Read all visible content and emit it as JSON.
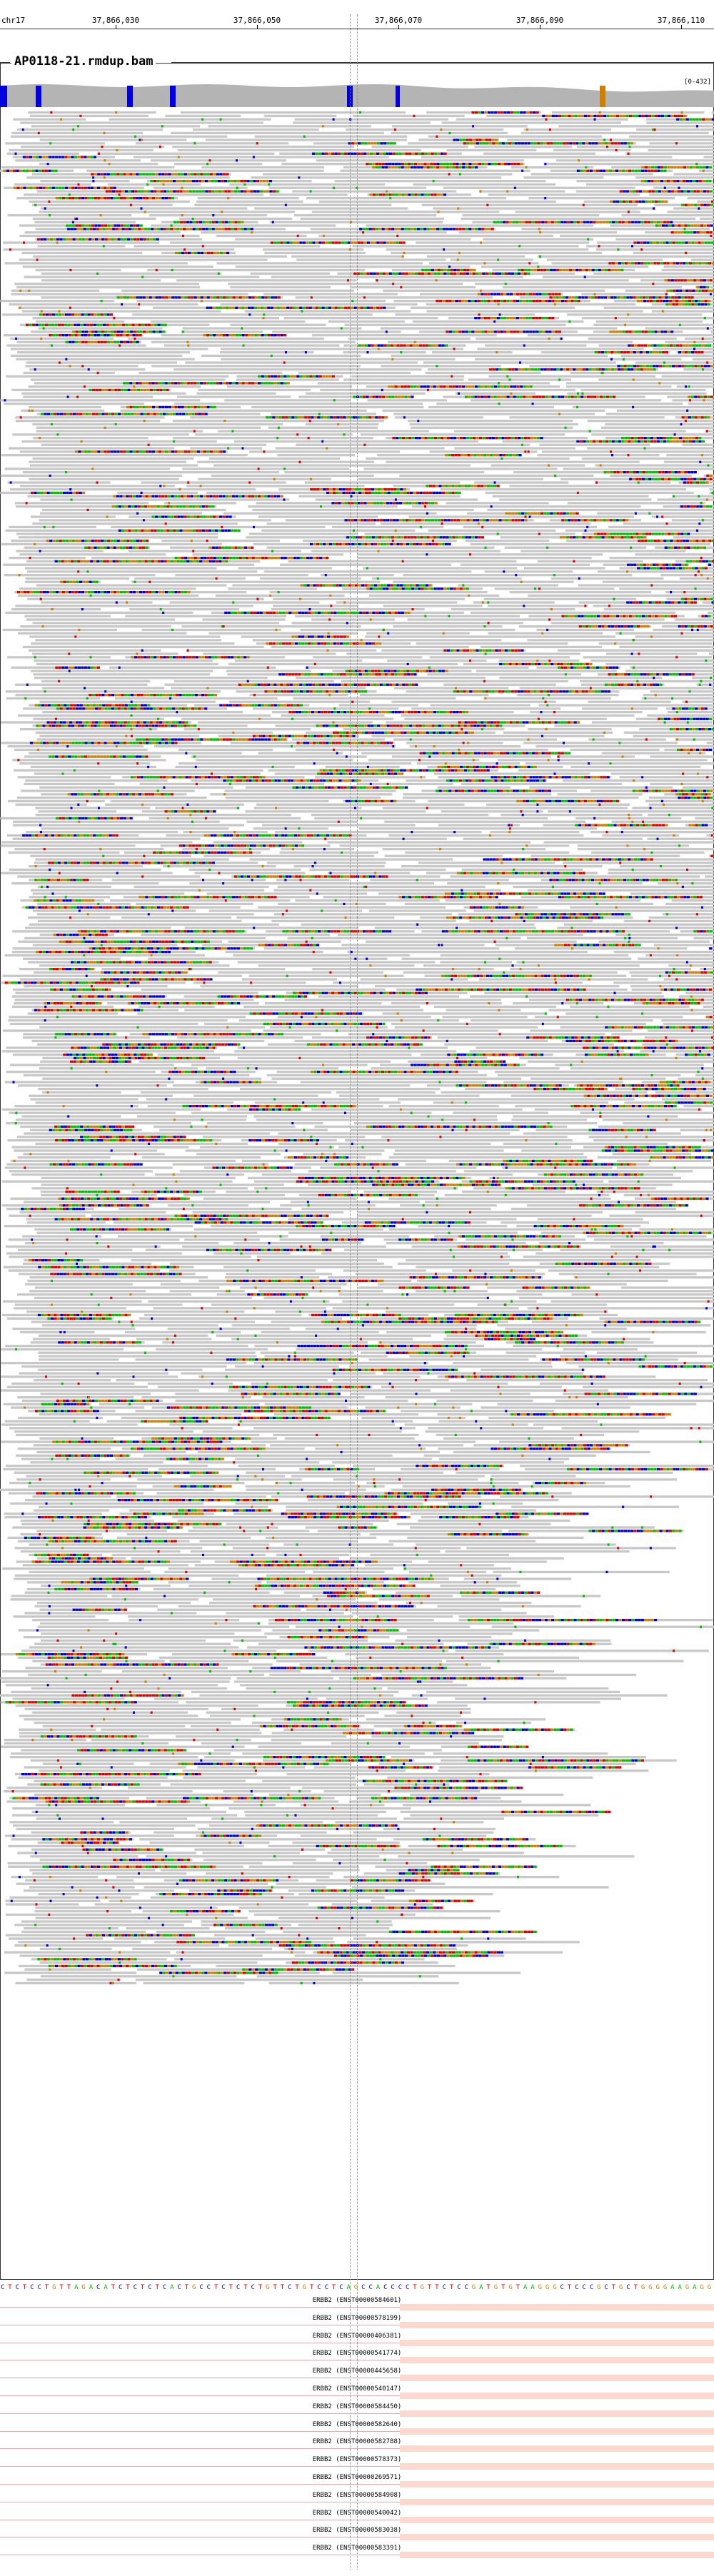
{
  "ruler": {
    "chromosome": "chr17",
    "ticks": [
      "37,866,030",
      "37,866,050",
      "37,866,070",
      "37,866,090",
      "37,866,110"
    ]
  },
  "panel": {
    "title": "AP0118-21.rmdup.bam",
    "coverage_range": "[0-432]"
  },
  "colors": {
    "read": "#c8c8c8",
    "A": "#00c000",
    "C": "#0000e0",
    "G": "#d08000",
    "T": "#e00000",
    "coverage": "#b4b4b4",
    "transcript": "#f4a6a6"
  },
  "sequence": "CTCTCCTGTTAGACATCTCTCTCACTGCCTCTCTCTGTTCTGTCCTCAGCCACCCCTGTTCTCCGATGTGTAAGGGCTCCCGCTGCTGGGGAAGAGG",
  "transcripts": [
    "ERBB2 (ENST00000584601)",
    "ERBB2 (ENST00000578199)",
    "ERBB2 (ENST00000406381)",
    "ERBB2 (ENST00000541774)",
    "ERBB2 (ENST00000445658)",
    "ERBB2 (ENST00000540147)",
    "ERBB2 (ENST00000584450)",
    "ERBB2 (ENST00000582640)",
    "ERBB2 (ENST00000582788)",
    "ERBB2 (ENST00000578373)",
    "ERBB2 (ENST00000269571)",
    "ERBB2 (ENST00000584908)",
    "ERBB2 (ENST00000540042)",
    "ERBB2 (ENST00000583038)",
    "ERBB2 (ENST00000583391)"
  ]
}
